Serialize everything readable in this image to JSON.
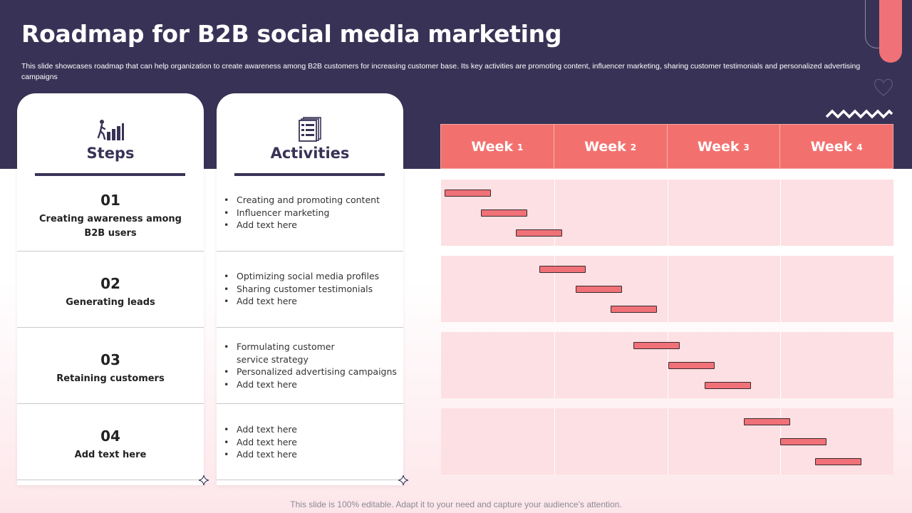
{
  "header": {
    "title": "Roadmap for B2B social media marketing",
    "subtitle": "This slide showcases roadmap that can help organization to create awareness among B2B customers for increasing customer base. Its key activities are promoting content, influencer marketing, sharing customer testimonials and personalized advertising campaigns"
  },
  "columns": {
    "steps_title": "Steps",
    "activities_title": "Activities",
    "steps_icon": "steps-growth-icon",
    "activities_icon": "checklist-icon"
  },
  "steps": [
    {
      "num": "01",
      "label": "Creating awareness among B2B users",
      "activities": [
        "Creating and promoting content",
        "Influencer marketing",
        "Add text here"
      ]
    },
    {
      "num": "02",
      "label": "Generating leads",
      "activities": [
        "Optimizing social media profiles",
        "Sharing customer testimonials",
        "Add text here"
      ]
    },
    {
      "num": "03",
      "label": "Retaining customers",
      "activities": [
        "Formulating customer service strategy",
        "Personalized advertising campaigns",
        "Add text here"
      ]
    },
    {
      "num": "04",
      "label": "Add text here",
      "activities": [
        "Add text here",
        "Add text here",
        "Add text here"
      ]
    }
  ],
  "gantt": {
    "weeks": [
      {
        "label": "Week",
        "num": "1"
      },
      {
        "label": "Week",
        "num": "2"
      },
      {
        "label": "Week",
        "num": "3"
      },
      {
        "label": "Week",
        "num": "4"
      }
    ],
    "tasks": [
      [
        {
          "start": 0.03,
          "end": 0.44
        },
        {
          "start": 0.35,
          "end": 0.76
        },
        {
          "start": 0.66,
          "end": 1.07
        }
      ],
      [
        {
          "start": 0.87,
          "end": 1.28
        },
        {
          "start": 1.19,
          "end": 1.6
        },
        {
          "start": 1.5,
          "end": 1.91
        }
      ],
      [
        {
          "start": 1.7,
          "end": 2.11
        },
        {
          "start": 2.01,
          "end": 2.42
        },
        {
          "start": 2.33,
          "end": 2.74
        }
      ],
      [
        {
          "start": 2.68,
          "end": 3.09
        },
        {
          "start": 3.0,
          "end": 3.41
        },
        {
          "start": 3.31,
          "end": 3.72
        }
      ]
    ]
  },
  "footer": "This slide is 100% editable. Adapt it to your need and capture your audience’s attention.",
  "colors": {
    "navy": "#383356",
    "coral": "#f07178",
    "pink_row": "#fde0e3"
  }
}
